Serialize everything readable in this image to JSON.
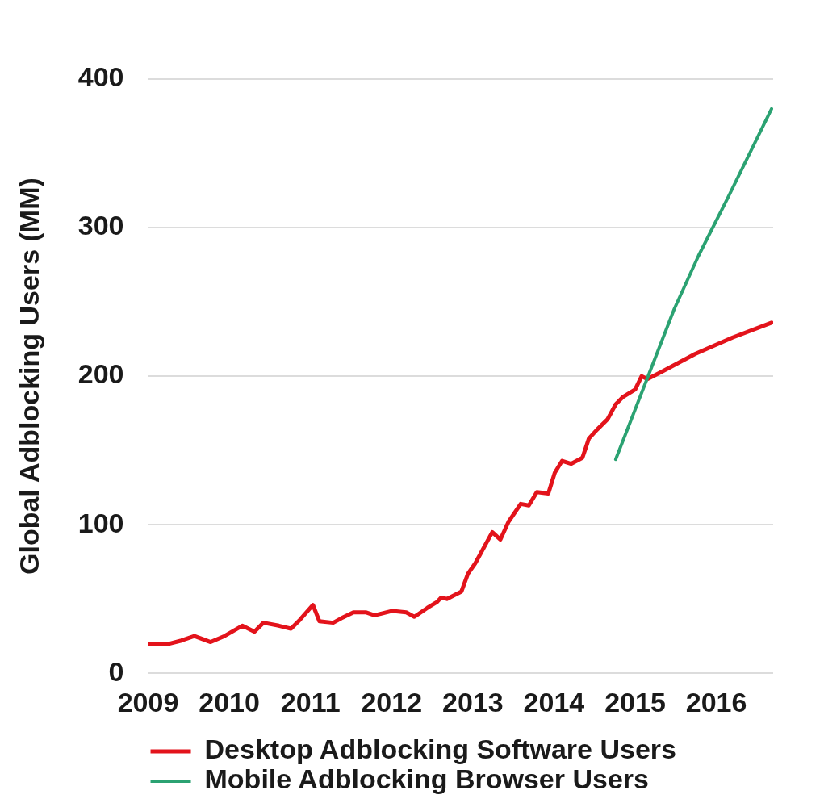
{
  "chart_data": {
    "type": "line",
    "ylabel": "Global Adblocking Users (MM)",
    "xlim": [
      2009,
      2016.7
    ],
    "xticks": [
      2009,
      2010,
      2011,
      2012,
      2013,
      2014,
      2015,
      2016
    ],
    "ylim": [
      0,
      400
    ],
    "yticks": [
      0,
      100,
      200,
      300,
      400
    ],
    "grid": "y",
    "legend": "bottom left",
    "marker": "none",
    "line_style": "solid",
    "series": [
      {
        "name": "Desktop Adblocking Software Users",
        "color": "#e3131b",
        "x": [
          2009.0,
          2009.27,
          2009.41,
          2009.57,
          2009.77,
          2009.94,
          2010.16,
          2010.31,
          2010.42,
          2010.61,
          2010.76,
          2010.87,
          2011.03,
          2011.11,
          2011.28,
          2011.38,
          2011.53,
          2011.68,
          2011.79,
          2012.01,
          2012.18,
          2012.28,
          2012.44,
          2012.56,
          2012.61,
          2012.68,
          2012.86,
          2012.94,
          2013.03,
          2013.09,
          2013.24,
          2013.34,
          2013.44,
          2013.59,
          2013.69,
          2013.79,
          2013.93,
          2014.01,
          2014.1,
          2014.21,
          2014.35,
          2014.43,
          2014.53,
          2014.66,
          2014.76,
          2014.85,
          2015.0,
          2015.08,
          2015.15,
          2015.33,
          2015.74,
          2016.2,
          2016.68
        ],
        "values": [
          20,
          20,
          22,
          25,
          21,
          25,
          32,
          28,
          34,
          32,
          30,
          36,
          46,
          35,
          34,
          37,
          41,
          41,
          39,
          42,
          41,
          38,
          44,
          48,
          51,
          50,
          55,
          67,
          74,
          80,
          95,
          90,
          102,
          114,
          113,
          122,
          121,
          135,
          143,
          141,
          145,
          158,
          164,
          171,
          181,
          186,
          191,
          200,
          198,
          203,
          215,
          226,
          236
        ]
      },
      {
        "name": "Mobile Adblocking Browser Users",
        "color": "#2ba272",
        "x": [
          2014.76,
          2015.16,
          2015.48,
          2015.78,
          2016.15,
          2016.68
        ],
        "values": [
          144,
          200,
          245,
          281,
          321,
          380
        ]
      }
    ]
  }
}
